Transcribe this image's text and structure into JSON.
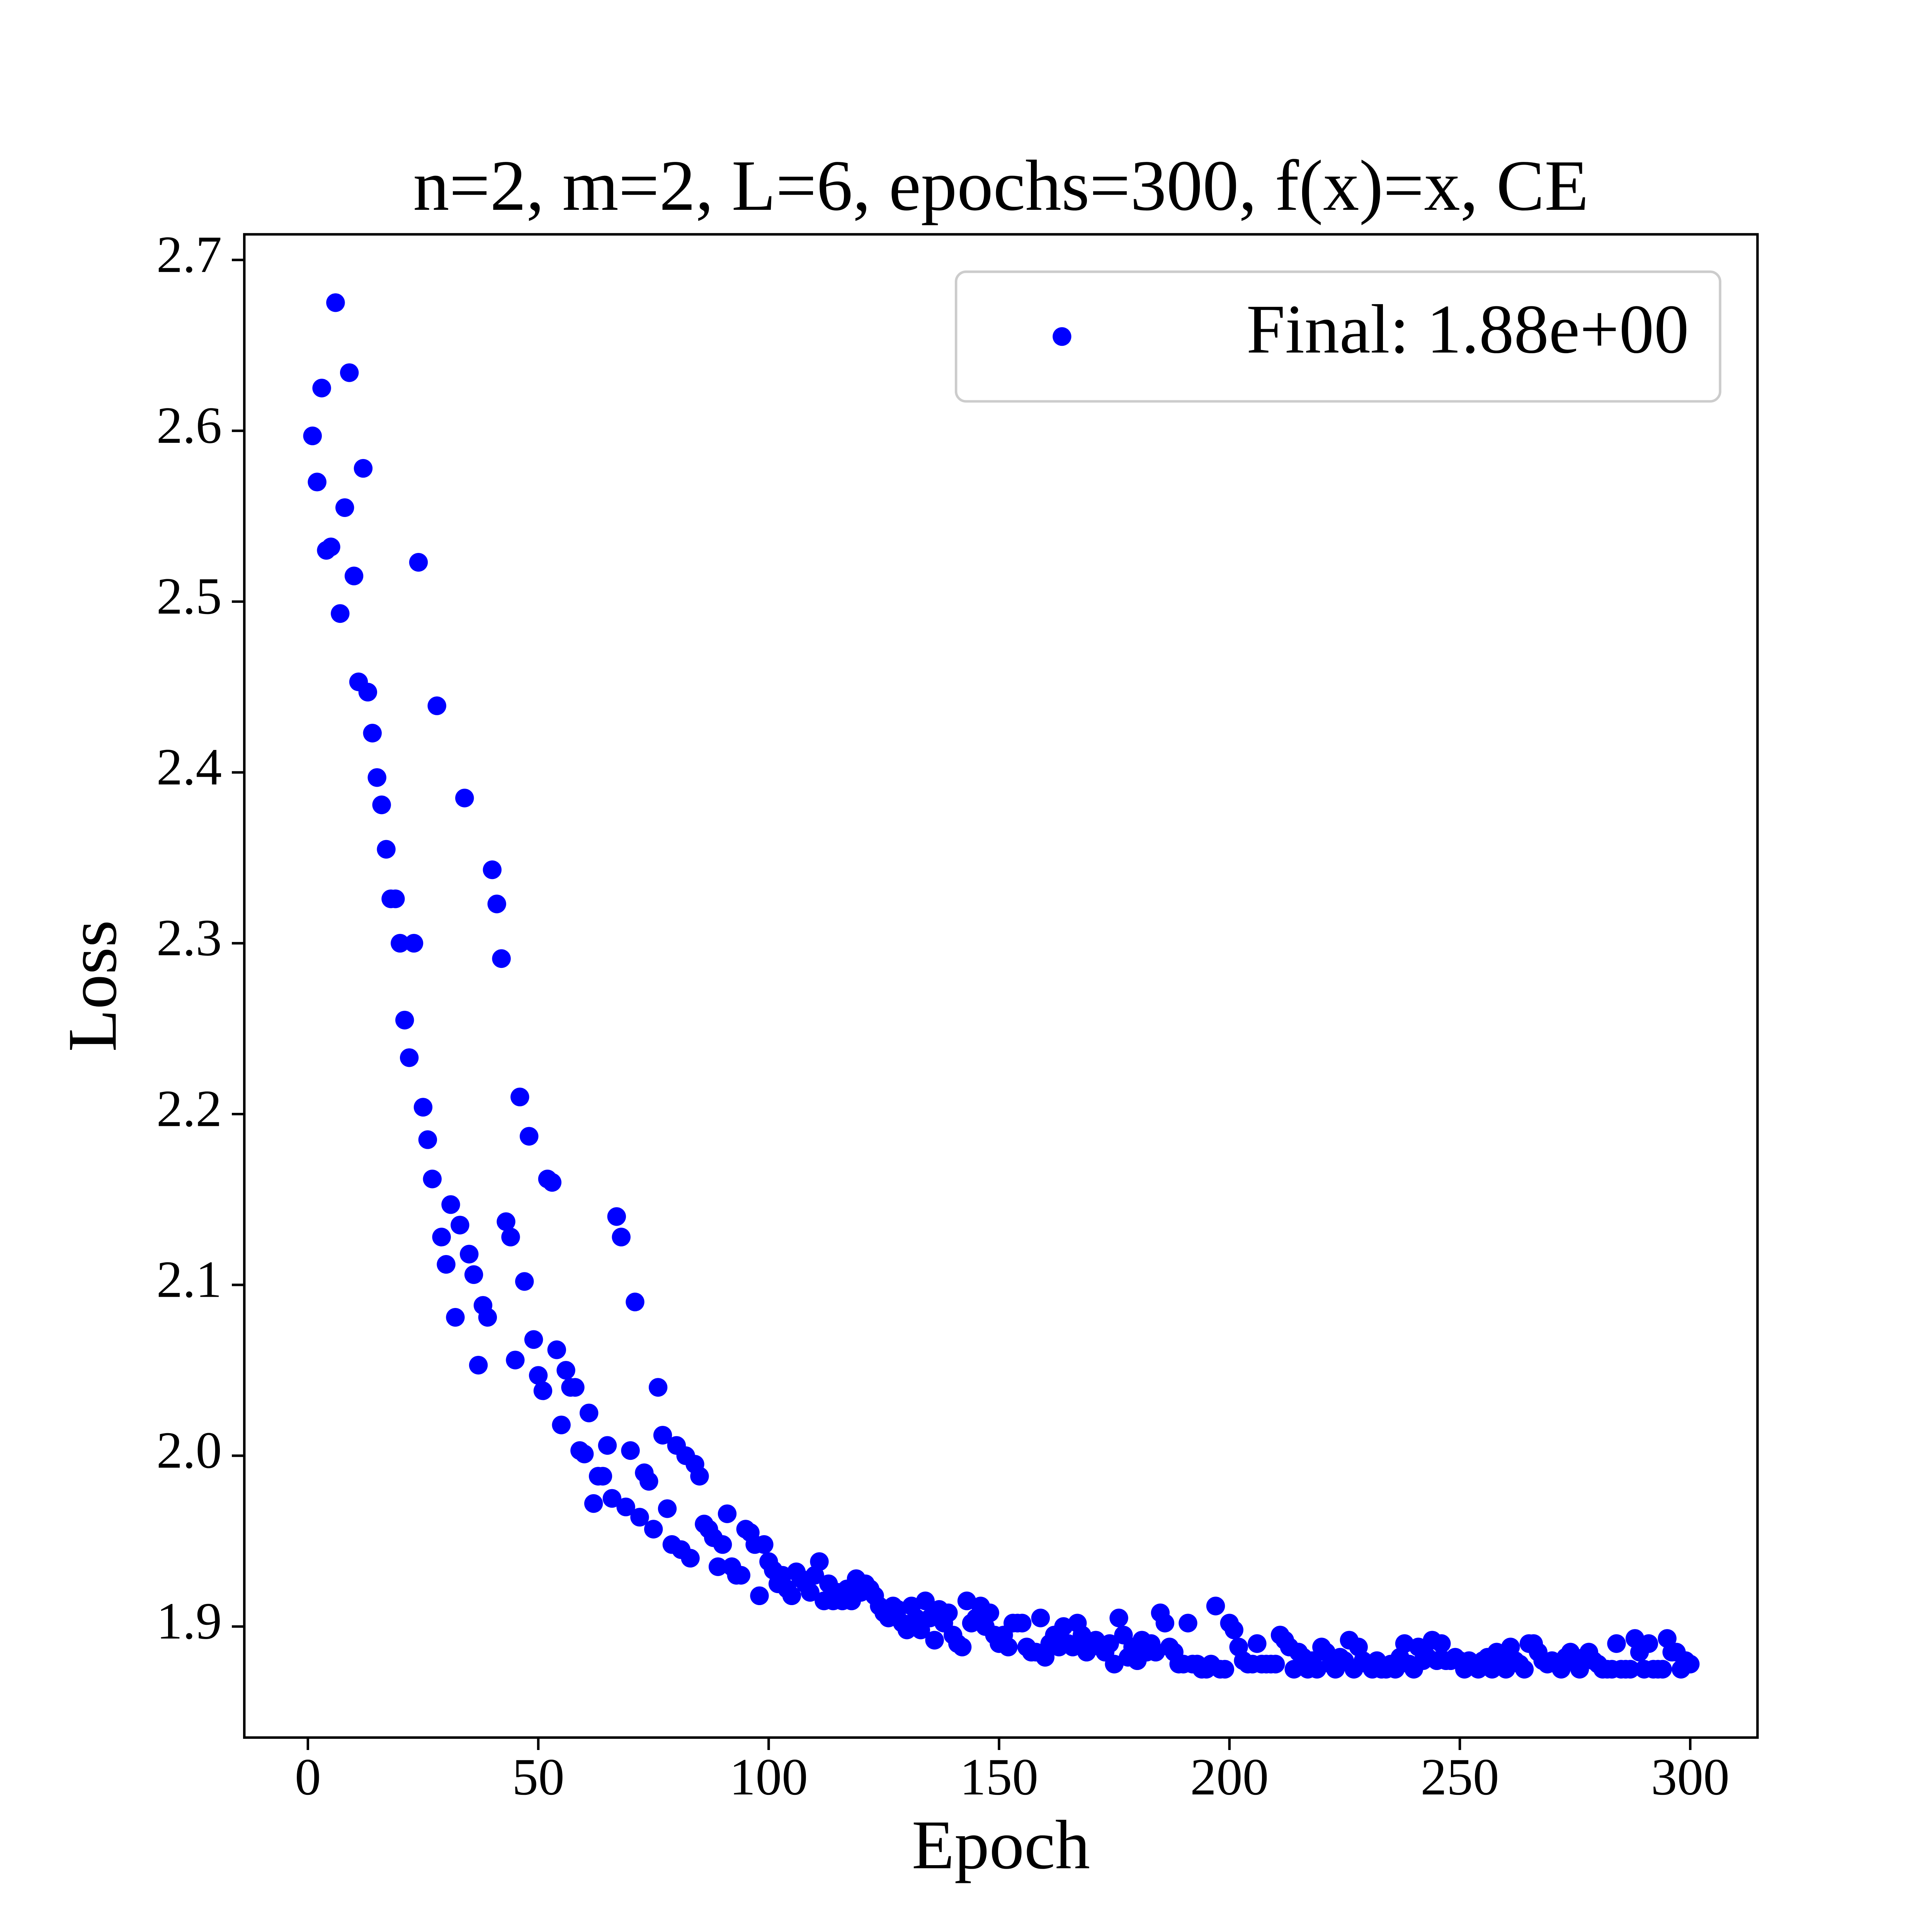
{
  "chart_data": {
    "type": "scatter",
    "title": "n=2, m=2, L=6, epochs=300, f(x)=x, CE",
    "xlabel": "Epoch",
    "ylabel": "Loss",
    "xlim": [
      -13.8,
      314.6
    ],
    "ylim": [
      1.835,
      2.715
    ],
    "xticks": [
      0,
      50,
      100,
      150,
      200,
      250,
      300
    ],
    "yticks": [
      1.9,
      {
        "value": 2,
        "label": "2.0"
      },
      2.1,
      2.2,
      2.3,
      2.4,
      2.5,
      2.6,
      2.7
    ],
    "grid": false,
    "legend": "upper right",
    "x": [
      1,
      2,
      3,
      4,
      5,
      6,
      7,
      8,
      9,
      10,
      11,
      12,
      13,
      14,
      15,
      16,
      17,
      18,
      19,
      20,
      21,
      22,
      23,
      24,
      25,
      26,
      27,
      28,
      29,
      30,
      31,
      32,
      33,
      34,
      35,
      36,
      37,
      38,
      39,
      40,
      41,
      42,
      43,
      44,
      45,
      46,
      47,
      48,
      49,
      50,
      51,
      52,
      53,
      54,
      55,
      56,
      57,
      58,
      59,
      60,
      61,
      62,
      63,
      64,
      65,
      66,
      67,
      68,
      69,
      70,
      71,
      72,
      73,
      74,
      75,
      76,
      77,
      78,
      79,
      80,
      81,
      82,
      83,
      84,
      85,
      86,
      87,
      88,
      89,
      90,
      91,
      92,
      93,
      94,
      95,
      96,
      97,
      98,
      99,
      100,
      101,
      102,
      103,
      104,
      105,
      106,
      107,
      108,
      109,
      110,
      111,
      112,
      113,
      114,
      115,
      116,
      117,
      118,
      119,
      120,
      121,
      122,
      123,
      124,
      125,
      126,
      127,
      128,
      129,
      130,
      131,
      132,
      133,
      134,
      135,
      136,
      137,
      138,
      139,
      140,
      141,
      142,
      143,
      144,
      145,
      146,
      147,
      148,
      149,
      150,
      151,
      152,
      153,
      154,
      155,
      156,
      157,
      158,
      159,
      160,
      161,
      162,
      163,
      164,
      165,
      166,
      167,
      168,
      169,
      170,
      171,
      172,
      173,
      174,
      175,
      176,
      177,
      178,
      179,
      180,
      181,
      182,
      183,
      184,
      185,
      186,
      187,
      188,
      189,
      190,
      191,
      192,
      193,
      194,
      195,
      196,
      197,
      198,
      199,
      200,
      201,
      202,
      203,
      204,
      205,
      206,
      207,
      208,
      209,
      210,
      211,
      212,
      213,
      214,
      215,
      216,
      217,
      218,
      219,
      220,
      221,
      222,
      223,
      224,
      225,
      226,
      227,
      228,
      229,
      230,
      231,
      232,
      233,
      234,
      235,
      236,
      237,
      238,
      239,
      240,
      241,
      242,
      243,
      244,
      245,
      246,
      247,
      248,
      249,
      250,
      251,
      252,
      253,
      254,
      255,
      256,
      257,
      258,
      259,
      260,
      261,
      262,
      263,
      264,
      265,
      266,
      267,
      268,
      269,
      270,
      271,
      272,
      273,
      274,
      275,
      276,
      277,
      278,
      279,
      280,
      281,
      282,
      283,
      284,
      285,
      286,
      287,
      288,
      289,
      290,
      291,
      292,
      293,
      294,
      295,
      296,
      297,
      298,
      299,
      300
    ],
    "series": [
      {
        "name": "Final: 1.88e+00",
        "color": "#0000ff",
        "values": [
          2.597,
          2.57,
          2.625,
          2.53,
          2.532,
          2.675,
          2.493,
          2.555,
          2.634,
          2.515,
          2.453,
          2.578,
          2.447,
          2.423,
          2.397,
          2.381,
          2.355,
          2.326,
          2.326,
          2.3,
          2.255,
          2.233,
          2.3,
          2.523,
          2.204,
          2.185,
          2.162,
          2.439,
          2.128,
          2.112,
          2.147,
          2.081,
          2.135,
          2.385,
          2.118,
          2.106,
          2.053,
          2.088,
          2.081,
          2.343,
          2.323,
          2.291,
          2.137,
          2.128,
          2.056,
          2.21,
          2.102,
          2.187,
          2.068,
          2.047,
          2.038,
          2.162,
          2.16,
          2.062,
          2.018,
          2.05,
          2.04,
          2.04,
          2.003,
          2.001,
          2.025,
          1.972,
          1.988,
          1.988,
          2.006,
          1.975,
          2.14,
          2.128,
          1.97,
          2.003,
          2.09,
          1.964,
          1.99,
          1.985,
          1.957,
          2.04,
          2.012,
          1.969,
          1.948,
          2.006,
          1.945,
          2.0,
          1.94,
          1.995,
          1.988,
          1.96,
          1.957,
          1.952,
          1.935,
          1.948,
          1.966,
          1.935,
          1.93,
          1.93,
          1.957,
          1.955,
          1.948,
          1.918,
          1.948,
          1.938,
          1.933,
          1.925,
          1.93,
          1.922,
          1.918,
          1.932,
          1.928,
          1.925,
          1.92,
          1.93,
          1.938,
          1.915,
          1.925,
          1.915,
          1.92,
          1.915,
          1.922,
          1.915,
          1.928,
          1.92,
          1.925,
          1.922,
          1.918,
          1.912,
          1.908,
          1.905,
          1.912,
          1.91,
          1.902,
          1.898,
          1.912,
          1.905,
          1.898,
          1.915,
          1.905,
          1.892,
          1.91,
          1.902,
          1.908,
          1.895,
          1.89,
          1.888,
          1.915,
          1.902,
          1.905,
          1.912,
          1.9,
          1.908,
          1.895,
          1.89,
          1.895,
          1.888,
          1.902,
          1.902,
          1.902,
          1.888,
          1.885,
          1.885,
          1.905,
          1.882,
          1.89,
          1.895,
          1.888,
          1.9,
          1.89,
          1.888,
          1.902,
          1.895,
          1.885,
          1.89,
          1.892,
          1.888,
          1.885,
          1.89,
          1.878,
          1.905,
          1.895,
          1.882,
          1.888,
          1.88,
          1.892,
          1.885,
          1.89,
          1.885,
          1.908,
          1.902,
          1.888,
          1.885,
          1.878,
          1.878,
          1.902,
          1.878,
          1.878,
          1.875,
          1.875,
          1.878,
          1.912,
          1.875,
          1.875,
          1.902,
          1.898,
          1.888,
          1.88,
          1.878,
          1.878,
          1.89,
          1.878,
          1.878,
          1.878,
          1.878,
          1.895,
          1.892,
          1.888,
          1.875,
          1.885,
          1.882,
          1.875,
          1.88,
          1.875,
          1.888,
          1.885,
          1.878,
          1.875,
          1.882,
          1.88,
          1.892,
          1.875,
          1.888,
          1.88,
          1.878,
          1.875,
          1.88,
          1.875,
          1.875,
          1.878,
          1.875,
          1.882,
          1.89,
          1.878,
          1.875,
          1.888,
          1.88,
          1.882,
          1.892,
          1.88,
          1.89,
          1.88,
          1.88,
          1.882,
          1.88,
          1.875,
          1.88,
          1.878,
          1.875,
          1.88,
          1.882,
          1.875,
          1.885,
          1.88,
          1.875,
          1.888,
          1.88,
          1.878,
          1.875,
          1.89,
          1.89,
          1.885,
          1.88,
          1.878,
          1.88,
          1.878,
          1.875,
          1.882,
          1.885,
          1.88,
          1.875,
          1.882,
          1.885,
          1.88,
          1.878,
          1.875,
          1.875,
          1.875,
          1.89,
          1.875,
          1.875,
          1.875,
          1.893,
          1.885,
          1.875,
          1.89,
          1.875,
          1.875,
          1.875,
          1.893,
          1.885,
          1.885,
          1.875,
          1.88,
          1.878
        ]
      }
    ]
  }
}
